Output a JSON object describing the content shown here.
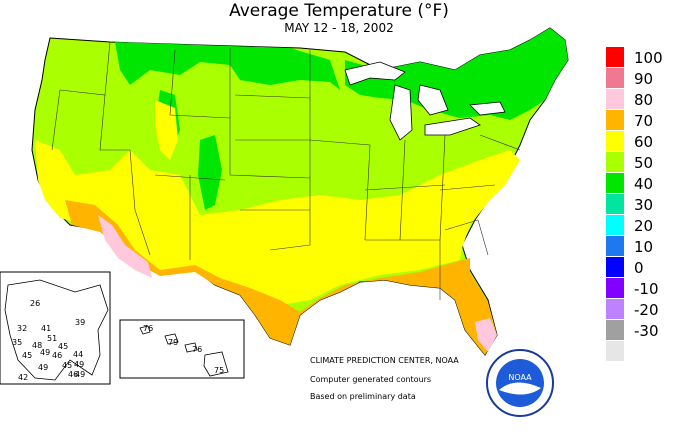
{
  "title": "Average Temperature (°F)",
  "subtitle": "MAY 12 - 18, 2002",
  "legend": {
    "items": [
      {
        "label": "100",
        "color": "#ff0000"
      },
      {
        "label": "90",
        "color": "#f07891"
      },
      {
        "label": "80",
        "color": "#ffc8dc"
      },
      {
        "label": "70",
        "color": "#ffb400"
      },
      {
        "label": "60",
        "color": "#ffff00"
      },
      {
        "label": "50",
        "color": "#aaff00"
      },
      {
        "label": "40",
        "color": "#00e600"
      },
      {
        "label": "30",
        "color": "#00e6a0"
      },
      {
        "label": "20",
        "color": "#00ffff"
      },
      {
        "label": "10",
        "color": "#1e78f0"
      },
      {
        "label": "0",
        "color": "#0000ff"
      },
      {
        "label": "-10",
        "color": "#8200ff"
      },
      {
        "label": "-20",
        "color": "#be82ff"
      },
      {
        "label": "-30",
        "color": "#a0a0a0"
      },
      {
        "label": "",
        "color": "#e6e6e6"
      }
    ]
  },
  "credits": {
    "line1": "CLIMATE PREDICTION CENTER, NOAA",
    "line2": "Computer generated contours",
    "line3": "Based on preliminary data"
  },
  "alaska_labels": [
    "26",
    "39",
    "32",
    "41",
    "51",
    "35",
    "48",
    "49",
    "45",
    "45",
    "46",
    "44",
    "45",
    "49",
    "49",
    "42",
    "49",
    "46"
  ],
  "hawaii_labels": [
    "76",
    "79",
    "76",
    "75"
  ],
  "logo_text": "NOAA"
}
